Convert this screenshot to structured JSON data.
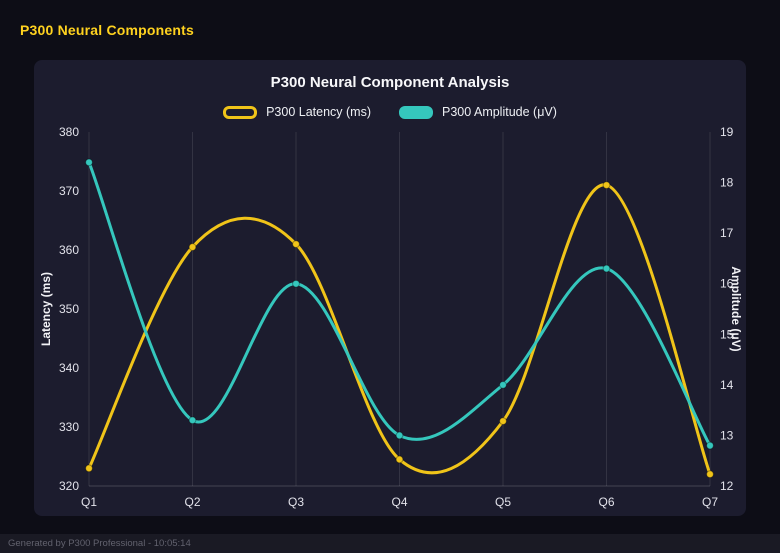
{
  "page": {
    "header_title": "P300 Neural Components",
    "footer_text": "Generated by P300 Professional - 10:05:14"
  },
  "chart_data": {
    "type": "line",
    "title": "P300 Neural Component Analysis",
    "categories": [
      "Q1",
      "Q2",
      "Q3",
      "Q4",
      "Q5",
      "Q6",
      "Q7"
    ],
    "series": [
      {
        "name": "P300 Latency (ms)",
        "axis": "left",
        "color": "#f0c419",
        "legend_style": "outline",
        "values": [
          323,
          360.5,
          361,
          324.5,
          331,
          371,
          322
        ]
      },
      {
        "name": "P300 Amplitude (μV)",
        "axis": "right",
        "color": "#35c7bd",
        "legend_style": "solid",
        "values": [
          18.4,
          13.3,
          16.0,
          13.0,
          14.0,
          16.3,
          12.8
        ]
      }
    ],
    "left_axis": {
      "label": "Latency (ms)",
      "min": 320,
      "max": 380,
      "ticks": [
        320,
        330,
        340,
        350,
        360,
        370,
        380
      ]
    },
    "right_axis": {
      "label": "Amplitude (μV)",
      "min": 12,
      "max": 19,
      "ticks": [
        12,
        13,
        14,
        15,
        16,
        17,
        18,
        19
      ]
    },
    "grid": "vertical",
    "legend_position": "top",
    "curve": "smooth"
  },
  "colors": {
    "background": "#0d0d16",
    "panel": "#1c1c2e",
    "accent_yellow": "#ffd21f",
    "latency_line": "#f0c419",
    "amplitude_line": "#35c7bd",
    "grid": "rgba(255,255,255,0.10)",
    "axis_line": "rgba(255,255,255,0.18)",
    "tick_text": "#e2e2ea",
    "axis_title_text": "#f2f2f6",
    "footer_text": "#62626e",
    "footer_bg": "#1a1a24"
  }
}
